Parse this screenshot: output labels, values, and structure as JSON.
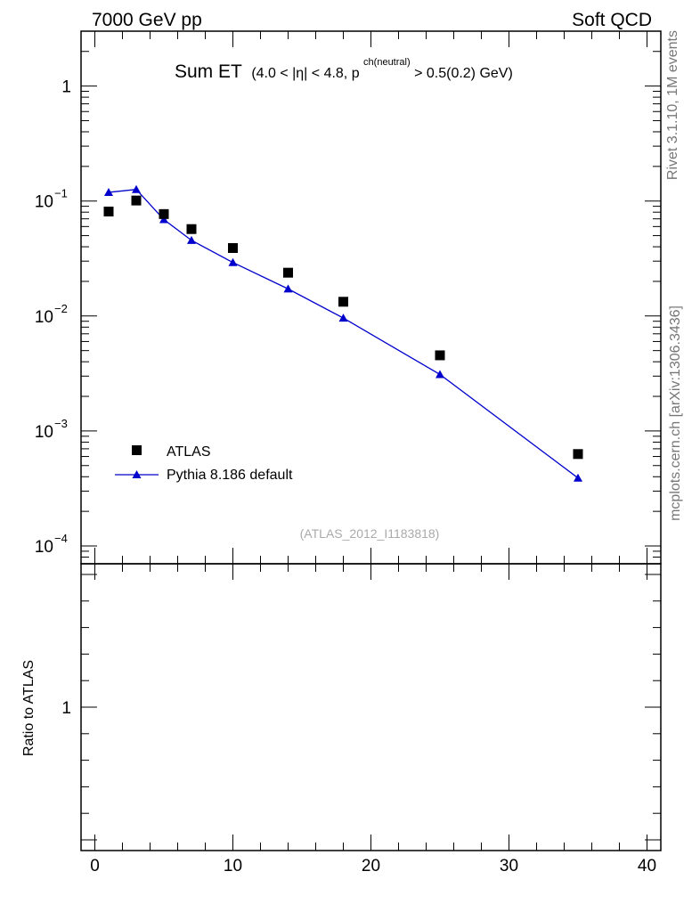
{
  "header": {
    "left": "7000 GeV pp",
    "right": "Soft QCD"
  },
  "side_labels": {
    "rivet": "Rivet 3.1.10,  1M events",
    "mcplots": "mcplots.cern.ch [arXiv:1306.3436]"
  },
  "plot_title": {
    "main": "Sum ET",
    "pre": "(4.0 < |η| < 4.8, p",
    "superscript": "ch(neutral)",
    "post": " > 0.5(0.2) GeV)"
  },
  "analysis_id": "(ATLAS_2012_I1183818)",
  "ratio_ylabel": "Ratio to ATLAS",
  "colors": {
    "data": "#000000",
    "mc": "#0000cc",
    "axis": "#000000"
  },
  "chart_data": {
    "type": "scatter",
    "xlim": [
      -1,
      41
    ],
    "ylim": [
      7e-05,
      3
    ],
    "yscale": "log",
    "x_ticks": [
      0,
      10,
      20,
      30,
      40
    ],
    "x_tick_labels": [
      "0",
      "10",
      "20",
      "30",
      "40"
    ],
    "y_tick_labels": [
      {
        "base": "10",
        "exp": "−4",
        "value": 0.0001
      },
      {
        "base": "10",
        "exp": "−3",
        "value": 0.001
      },
      {
        "base": "10",
        "exp": "−2",
        "value": 0.01
      },
      {
        "base": "10",
        "exp": "−1",
        "value": 0.1
      },
      {
        "base": "1",
        "exp": "",
        "value": 1
      }
    ],
    "legend_position": "lower-left",
    "series": [
      {
        "name": "ATLAS",
        "marker": "square",
        "x": [
          1,
          3,
          5,
          7,
          10,
          14,
          18,
          25,
          35
        ],
        "y": [
          0.081,
          0.101,
          0.077,
          0.057,
          0.039,
          0.0238,
          0.0133,
          0.00455,
          0.00063
        ]
      },
      {
        "name": "Pythia 8.186 default",
        "marker": "triangle",
        "line": true,
        "x": [
          1,
          3,
          5,
          7,
          10,
          14,
          18,
          25,
          35
        ],
        "y": [
          0.119,
          0.126,
          0.069,
          0.0455,
          0.0292,
          0.0172,
          0.0096,
          0.0031,
          0.00039
        ]
      }
    ],
    "ratio_panel": {
      "ylabel": "Ratio to ATLAS",
      "y_tick_labels": [
        "1"
      ],
      "ylim": [
        0.5,
        1.5
      ]
    }
  }
}
